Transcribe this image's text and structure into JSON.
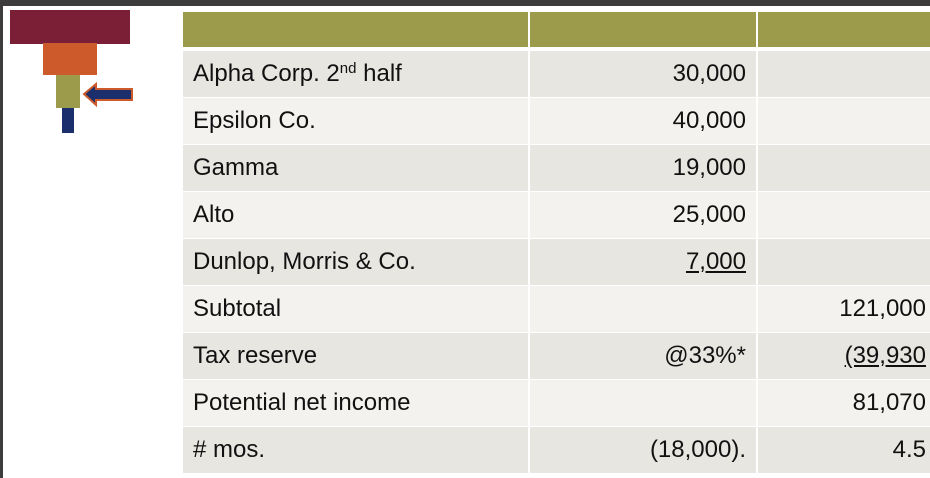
{
  "table": {
    "underlined": [
      [
        4,
        1
      ],
      [
        6,
        2
      ]
    ],
    "rows": [
      [
        [
          "Alpha Corp. 2",
          "nd",
          " half"
        ],
        "30,000",
        null
      ],
      [
        "Epsilon Co.",
        "40,000",
        null
      ],
      [
        "Gamma",
        "19,000",
        null
      ],
      [
        "Alto",
        "25,000",
        null
      ],
      [
        "Dunlop, Morris & Co.",
        "7,000",
        null
      ],
      [
        "Subtotal",
        null,
        "121,000"
      ],
      [
        "Tax reserve",
        "@33%*",
        "(39,930"
      ],
      [
        "Potential net income",
        null,
        "81,070"
      ],
      [
        "# mos.",
        "(18,000).",
        "4.5"
      ]
    ]
  }
}
